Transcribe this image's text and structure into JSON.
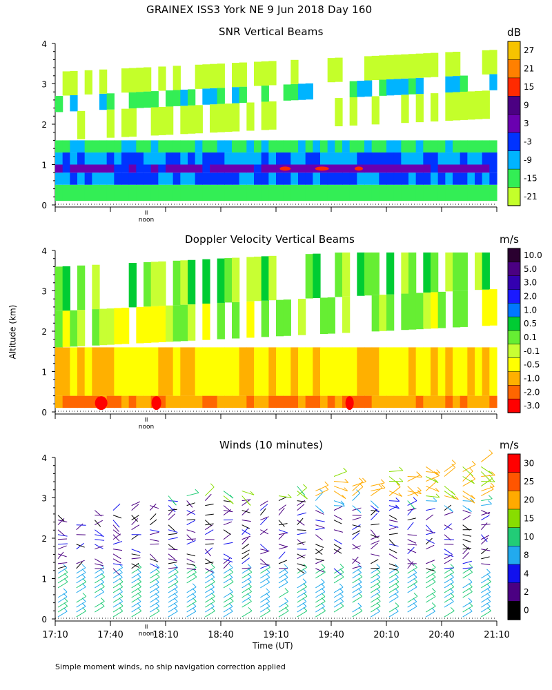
{
  "header": {
    "title": "GRAINEX ISS3 York NE   9 Jun 2018 Day 160"
  },
  "shared": {
    "ylabel": "Altitude (km)",
    "xlabel": "Time (UT)",
    "y_ticks": [
      "0",
      "1",
      "2",
      "3",
      "4"
    ],
    "x_ticks": [
      "17:10",
      "17:40",
      "18:10",
      "18:40",
      "19:10",
      "19:40",
      "20:10",
      "20:40",
      "21:10"
    ],
    "noon_label": "noon",
    "noon_mark": "II"
  },
  "footer": {
    "note": "Simple moment winds, no ship navigation correction applied"
  },
  "chart_data": [
    {
      "id": "snr",
      "type": "heatmap",
      "title": "SNR Vertical Beams",
      "units": "dB",
      "xlabel": "Time (UT)",
      "ylabel": "Altitude (km)",
      "xlim": [
        "17:10",
        "21:10"
      ],
      "ylim": [
        0,
        4
      ],
      "colorbar_labels": [
        "27",
        "21",
        "15",
        "9",
        "3",
        "-3",
        "-9",
        "-15",
        "-21"
      ],
      "colorbar_colors": [
        "#f7c300",
        "#ff8000",
        "#ff2a00",
        "#4b0082",
        "#6a00b0",
        "#0033ff",
        "#00b4ff",
        "#33ee55",
        "#c4ff2a"
      ],
      "bands": [
        {
          "alt_range_km": [
            0.1,
            0.5
          ],
          "snr_db": -12
        },
        {
          "alt_range_km": [
            0.5,
            0.8
          ],
          "snr_db": -3
        },
        {
          "alt_range_km": [
            0.8,
            1.0
          ],
          "snr_db": 5
        },
        {
          "alt_range_km": [
            1.0,
            1.3
          ],
          "snr_db": -3
        },
        {
          "alt_range_km": [
            1.3,
            1.6
          ],
          "snr_db": -10
        },
        {
          "alt_range_km": [
            1.6,
            2.3
          ],
          "snr_db": -19
        },
        {
          "alt_range_km": [
            2.3,
            2.7
          ],
          "snr_db": -10
        },
        {
          "alt_range_km": [
            2.7,
            3.3
          ],
          "snr_db": -19
        }
      ],
      "peak_note": "+15 dB patches near 0.9 km, 19:15-20:05"
    },
    {
      "id": "doppler",
      "type": "heatmap",
      "title": "Doppler Velocity Vertical Beams",
      "units": "m/s",
      "xlabel": "Time (UT)",
      "ylabel": "Altitude (km)",
      "xlim": [
        "17:10",
        "21:10"
      ],
      "ylim": [
        0,
        4
      ],
      "colorbar_labels": [
        "10.0",
        "5.0",
        "3.0",
        "2.0",
        "1.0",
        "0.5",
        "0.1",
        "-0.1",
        "-0.5",
        "-1.0",
        "-2.0",
        "-3.0"
      ],
      "colorbar_colors": [
        "#2a0030",
        "#4b0082",
        "#3300b0",
        "#1a1aff",
        "#0077ff",
        "#00cc33",
        "#66ee33",
        "#c8ff33",
        "#ffff00",
        "#ffb000",
        "#ff6600",
        "#ff0000"
      ],
      "bands": [
        {
          "alt_range_km": [
            0.1,
            0.4
          ],
          "velocity_ms": -1.0
        },
        {
          "alt_range_km": [
            0.4,
            1.6
          ],
          "velocity_ms": -0.5
        },
        {
          "alt_range_km": [
            1.6,
            2.5
          ],
          "velocity_ms": 0.1
        },
        {
          "alt_range_km": [
            2.5,
            3.6
          ],
          "velocity_ms": 0.3
        }
      ],
      "peak_note": "-3.0 m/s cells near 0.2 km at 17:35, 18:05 and 19:50"
    },
    {
      "id": "winds",
      "type": "scatter",
      "title": "Winds (10 minutes)",
      "units": "m/s",
      "xlabel": "Time (UT)",
      "ylabel": "Altitude (km)",
      "xlim": [
        "17:10",
        "21:10"
      ],
      "ylim": [
        0,
        4
      ],
      "colorbar_labels": [
        "30",
        "25",
        "20",
        "15",
        "10",
        "8",
        "4",
        "2",
        "0"
      ],
      "colorbar_colors": [
        "#ff0000",
        "#ff5500",
        "#ffaa00",
        "#88dd00",
        "#22cc77",
        "#22aaee",
        "#1111ee",
        "#4b0082",
        "#000000"
      ],
      "profiles_times": [
        "17:10",
        "17:20",
        "17:30",
        "17:40",
        "17:50",
        "18:00",
        "18:10",
        "18:20",
        "18:30",
        "18:40",
        "18:50",
        "19:00",
        "19:10",
        "19:20",
        "19:30",
        "19:40",
        "19:50",
        "20:00",
        "20:10",
        "20:20",
        "20:30",
        "20:40",
        "20:50",
        "21:00"
      ],
      "speed_by_altitude": [
        {
          "alt_range_km": [
            0.0,
            1.2
          ],
          "speed_ms": 10
        },
        {
          "alt_range_km": [
            1.2,
            3.0
          ],
          "speed_ms": 3
        },
        {
          "alt_range_km": [
            3.0,
            4.0
          ],
          "speed_ms": 15
        }
      ]
    }
  ]
}
